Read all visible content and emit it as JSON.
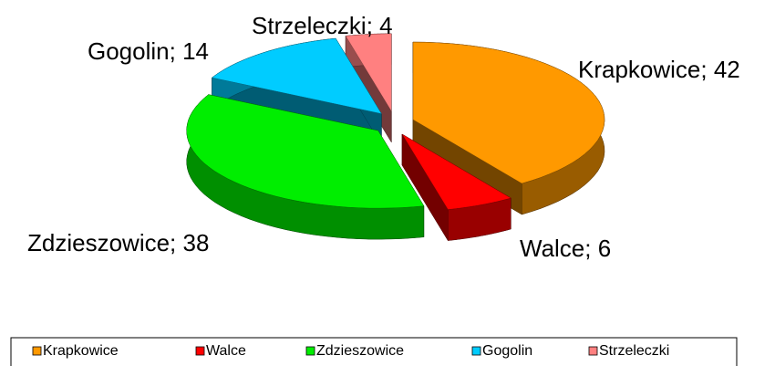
{
  "chart_data": {
    "type": "pie",
    "categories": [
      "Krapkowice",
      "Walce",
      "Zdzieszowice",
      "Gogolin",
      "Strzeleczki"
    ],
    "values": [
      42,
      6,
      38,
      14,
      4
    ],
    "value_labels": [
      "Krapkowice; 42",
      "Walce; 6",
      "Zdzieszowice; 38",
      "Gogolin; 14",
      "Strzeleczki; 4"
    ],
    "colors": [
      "#ff9900",
      "#ff0000",
      "#00ee00",
      "#00ccff",
      "#ff8080"
    ],
    "legend": "bottom"
  }
}
